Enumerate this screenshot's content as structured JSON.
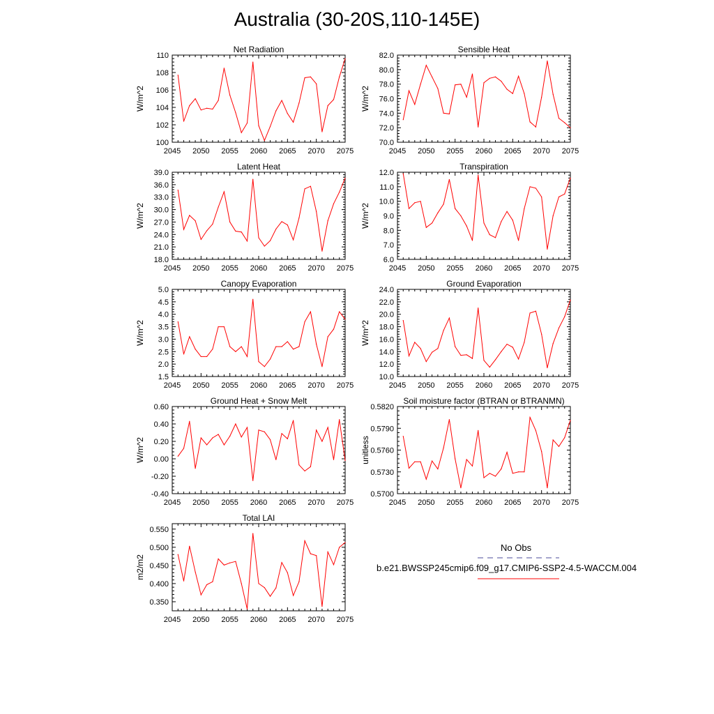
{
  "figure": {
    "title": "Australia (30-20S,110-145E)"
  },
  "legend": {
    "entries": [
      {
        "label": "No Obs",
        "color": "#4b4b9a",
        "style": "dashed"
      },
      {
        "label": "b.e21.BWSSP245cmip6.f09_g17.CMIP6-SSP2-4.5-WACCM.004",
        "color": "#ff0000",
        "style": "solid"
      }
    ]
  },
  "chart_data": [
    {
      "type": "line",
      "title": "Net Radiation",
      "xlabel": "",
      "ylabel": "W/m^2",
      "xlim": [
        2045,
        2075
      ],
      "ylim": [
        100,
        110
      ],
      "xticks": [
        2045,
        2050,
        2055,
        2060,
        2065,
        2070,
        2075
      ],
      "yticks": [
        100,
        102,
        104,
        106,
        108,
        110
      ],
      "ytick_labels": [
        "100",
        "102",
        "104",
        "106",
        "108",
        "110"
      ],
      "series": [
        {
          "color": "#ff0000",
          "x": [
            2046,
            2047,
            2048,
            2049,
            2050,
            2051,
            2052,
            2053,
            2054,
            2055,
            2056,
            2057,
            2058,
            2059,
            2060,
            2061,
            2062,
            2063,
            2064,
            2065,
            2066,
            2067,
            2068,
            2069,
            2070,
            2071,
            2072,
            2073,
            2074,
            2075
          ],
          "y": [
            107.7,
            102.4,
            104.2,
            105.0,
            103.7,
            103.9,
            103.8,
            104.8,
            108.5,
            105.4,
            103.4,
            101.1,
            102.2,
            109.2,
            101.9,
            100.2,
            101.8,
            103.6,
            104.8,
            103.3,
            102.3,
            104.5,
            107.4,
            107.5,
            106.7,
            101.2,
            104.2,
            104.9,
            107.5,
            109.6
          ]
        }
      ]
    },
    {
      "type": "line",
      "title": "Sensible Heat",
      "xlabel": "",
      "ylabel": "W/m^2",
      "xlim": [
        2045,
        2075
      ],
      "ylim": [
        70,
        82
      ],
      "xticks": [
        2045,
        2050,
        2055,
        2060,
        2065,
        2070,
        2075
      ],
      "yticks": [
        70,
        72,
        74,
        76,
        78,
        80,
        82
      ],
      "ytick_labels": [
        "70.0",
        "72.0",
        "74.0",
        "76.0",
        "78.0",
        "80.0",
        "82.0"
      ],
      "series": [
        {
          "color": "#ff0000",
          "x": [
            2046,
            2047,
            2048,
            2049,
            2050,
            2051,
            2052,
            2053,
            2054,
            2055,
            2056,
            2057,
            2058,
            2059,
            2060,
            2061,
            2062,
            2063,
            2064,
            2065,
            2066,
            2067,
            2068,
            2069,
            2070,
            2071,
            2072,
            2073,
            2074,
            2075
          ],
          "y": [
            73.1,
            77.1,
            75.2,
            78.0,
            80.6,
            79.0,
            77.4,
            74.0,
            73.9,
            77.9,
            78.0,
            76.2,
            79.4,
            72.1,
            78.2,
            78.8,
            79.0,
            78.4,
            77.3,
            76.7,
            79.1,
            76.7,
            72.8,
            72.1,
            76.2,
            81.2,
            76.6,
            73.3,
            72.7,
            72.0
          ]
        }
      ]
    },
    {
      "type": "line",
      "title": "Latent Heat",
      "xlabel": "",
      "ylabel": "W/m^2",
      "xlim": [
        2045,
        2075
      ],
      "ylim": [
        18,
        39
      ],
      "xticks": [
        2045,
        2050,
        2055,
        2060,
        2065,
        2070,
        2075
      ],
      "yticks": [
        18,
        21,
        24,
        27,
        30,
        33,
        36,
        39
      ],
      "ytick_labels": [
        "18.0",
        "21.0",
        "24.0",
        "27.0",
        "30.0",
        "33.0",
        "36.0",
        "39.0"
      ],
      "series": [
        {
          "color": "#ff0000",
          "x": [
            2046,
            2047,
            2048,
            2049,
            2050,
            2051,
            2052,
            2053,
            2054,
            2055,
            2056,
            2057,
            2058,
            2059,
            2060,
            2061,
            2062,
            2063,
            2064,
            2065,
            2066,
            2067,
            2068,
            2069,
            2070,
            2071,
            2072,
            2073,
            2074,
            2075
          ],
          "y": [
            34.7,
            25.2,
            28.6,
            27.3,
            22.8,
            24.9,
            26.5,
            30.6,
            34.3,
            27.0,
            24.8,
            24.6,
            22.4,
            37.3,
            23.2,
            21.2,
            22.5,
            25.3,
            27.1,
            26.3,
            22.7,
            28.0,
            35.0,
            35.6,
            29.5,
            20.0,
            27.3,
            31.4,
            34.2,
            37.6
          ]
        }
      ]
    },
    {
      "type": "line",
      "title": "Transpiration",
      "xlabel": "",
      "ylabel": "W/m^2",
      "xlim": [
        2045,
        2075
      ],
      "ylim": [
        6,
        12
      ],
      "xticks": [
        2045,
        2050,
        2055,
        2060,
        2065,
        2070,
        2075
      ],
      "yticks": [
        6,
        7,
        8,
        9,
        10,
        11,
        12
      ],
      "ytick_labels": [
        "6.0",
        "7.0",
        "8.0",
        "9.0",
        "10.0",
        "11.0",
        "12.0"
      ],
      "series": [
        {
          "color": "#ff0000",
          "x": [
            2046,
            2047,
            2048,
            2049,
            2050,
            2051,
            2052,
            2053,
            2054,
            2055,
            2056,
            2057,
            2058,
            2059,
            2060,
            2061,
            2062,
            2063,
            2064,
            2065,
            2066,
            2067,
            2068,
            2069,
            2070,
            2071,
            2072,
            2073,
            2074,
            2075
          ],
          "y": [
            11.9,
            9.5,
            9.9,
            10.0,
            8.2,
            8.5,
            9.2,
            9.8,
            11.5,
            9.5,
            9.0,
            8.3,
            7.3,
            11.8,
            8.5,
            7.7,
            7.5,
            8.6,
            9.3,
            8.7,
            7.3,
            9.5,
            11.0,
            10.9,
            10.3,
            6.7,
            9.0,
            10.3,
            10.5,
            11.6
          ]
        }
      ]
    },
    {
      "type": "line",
      "title": "Canopy Evaporation",
      "xlabel": "",
      "ylabel": "W/m^2",
      "xlim": [
        2045,
        2075
      ],
      "ylim": [
        1.5,
        5.0
      ],
      "xticks": [
        2045,
        2050,
        2055,
        2060,
        2065,
        2070,
        2075
      ],
      "yticks": [
        1.5,
        2.0,
        2.5,
        3.0,
        3.5,
        4.0,
        4.5,
        5.0
      ],
      "ytick_labels": [
        "1.5",
        "2.0",
        "2.5",
        "3.0",
        "3.5",
        "4.0",
        "4.5",
        "5.0"
      ],
      "series": [
        {
          "color": "#ff0000",
          "x": [
            2046,
            2047,
            2048,
            2049,
            2050,
            2051,
            2052,
            2053,
            2054,
            2055,
            2056,
            2057,
            2058,
            2059,
            2060,
            2061,
            2062,
            2063,
            2064,
            2065,
            2066,
            2067,
            2068,
            2069,
            2070,
            2071,
            2072,
            2073,
            2074,
            2075
          ],
          "y": [
            3.7,
            2.4,
            3.1,
            2.6,
            2.3,
            2.3,
            2.6,
            3.5,
            3.5,
            2.7,
            2.5,
            2.7,
            2.3,
            4.6,
            2.1,
            1.9,
            2.2,
            2.7,
            2.7,
            2.9,
            2.6,
            2.7,
            3.7,
            4.1,
            2.8,
            1.9,
            3.1,
            3.4,
            4.1,
            3.8
          ]
        }
      ]
    },
    {
      "type": "line",
      "title": "Ground Evaporation",
      "xlabel": "",
      "ylabel": "W/m^2",
      "xlim": [
        2045,
        2075
      ],
      "ylim": [
        10,
        24
      ],
      "xticks": [
        2045,
        2050,
        2055,
        2060,
        2065,
        2070,
        2075
      ],
      "yticks": [
        10,
        12,
        14,
        16,
        18,
        20,
        22,
        24
      ],
      "ytick_labels": [
        "10.0",
        "12.0",
        "14.0",
        "16.0",
        "18.0",
        "20.0",
        "22.0",
        "24.0"
      ],
      "series": [
        {
          "color": "#ff0000",
          "x": [
            2046,
            2047,
            2048,
            2049,
            2050,
            2051,
            2052,
            2053,
            2054,
            2055,
            2056,
            2057,
            2058,
            2059,
            2060,
            2061,
            2062,
            2063,
            2064,
            2065,
            2066,
            2067,
            2068,
            2069,
            2070,
            2071,
            2072,
            2073,
            2074,
            2075
          ],
          "y": [
            19.0,
            13.3,
            15.5,
            14.5,
            12.4,
            13.9,
            14.5,
            17.4,
            19.4,
            14.8,
            13.4,
            13.5,
            12.9,
            21.0,
            12.6,
            11.5,
            12.7,
            14.0,
            15.2,
            14.7,
            12.8,
            15.5,
            20.2,
            20.5,
            16.8,
            11.4,
            15.3,
            17.8,
            19.6,
            22.3
          ]
        }
      ]
    },
    {
      "type": "line",
      "title": "Ground Heat + Snow Melt",
      "xlabel": "",
      "ylabel": "W/m^2",
      "xlim": [
        2045,
        2075
      ],
      "ylim": [
        -0.4,
        0.6
      ],
      "xticks": [
        2045,
        2050,
        2055,
        2060,
        2065,
        2070,
        2075
      ],
      "yticks": [
        -0.4,
        -0.2,
        0.0,
        0.2,
        0.4,
        0.6
      ],
      "ytick_labels": [
        "-0.40",
        "-0.20",
        "0.00",
        "0.20",
        "0.40",
        "0.60"
      ],
      "series": [
        {
          "color": "#ff0000",
          "x": [
            2046,
            2047,
            2048,
            2049,
            2050,
            2051,
            2052,
            2053,
            2054,
            2055,
            2056,
            2057,
            2058,
            2059,
            2060,
            2061,
            2062,
            2063,
            2064,
            2065,
            2066,
            2067,
            2068,
            2069,
            2070,
            2071,
            2072,
            2073,
            2074,
            2075
          ],
          "y": [
            0.03,
            0.12,
            0.43,
            -0.11,
            0.24,
            0.16,
            0.24,
            0.28,
            0.16,
            0.26,
            0.4,
            0.25,
            0.36,
            -0.25,
            0.33,
            0.31,
            0.22,
            -0.01,
            0.29,
            0.23,
            0.44,
            -0.07,
            -0.14,
            -0.09,
            0.33,
            0.2,
            0.36,
            -0.01,
            0.45,
            -0.02
          ]
        }
      ]
    },
    {
      "type": "line",
      "title": "Soil moisture factor (BTRAN or BTRANMN)",
      "xlabel": "",
      "ylabel": "unitless",
      "xlim": [
        2045,
        2075
      ],
      "ylim": [
        0.57,
        0.582
      ],
      "xticks": [
        2045,
        2050,
        2055,
        2060,
        2065,
        2070,
        2075
      ],
      "yticks": [
        0.57,
        0.573,
        0.576,
        0.579,
        0.582
      ],
      "ytick_labels": [
        "0.5700",
        "0.5730",
        "0.5760",
        "0.5790",
        "0.5820"
      ],
      "series": [
        {
          "color": "#ff0000",
          "x": [
            2046,
            2047,
            2048,
            2049,
            2050,
            2051,
            2052,
            2053,
            2054,
            2055,
            2056,
            2057,
            2058,
            2059,
            2060,
            2061,
            2062,
            2063,
            2064,
            2065,
            2066,
            2067,
            2068,
            2069,
            2070,
            2071,
            2072,
            2073,
            2074,
            2075
          ],
          "y": [
            0.5779,
            0.5735,
            0.5744,
            0.5744,
            0.572,
            0.5745,
            0.5734,
            0.5763,
            0.5802,
            0.5748,
            0.5708,
            0.5747,
            0.5738,
            0.5787,
            0.5722,
            0.5728,
            0.5724,
            0.5734,
            0.5757,
            0.5728,
            0.573,
            0.573,
            0.5805,
            0.5787,
            0.5758,
            0.5708,
            0.5774,
            0.5765,
            0.5777,
            0.5801
          ]
        }
      ]
    },
    {
      "type": "line",
      "title": "Total LAI",
      "xlabel": "",
      "ylabel": "m2/m2",
      "xlim": [
        2045,
        2075
      ],
      "ylim": [
        0.325,
        0.565
      ],
      "xticks": [
        2045,
        2050,
        2055,
        2060,
        2065,
        2070,
        2075
      ],
      "yticks": [
        0.35,
        0.4,
        0.45,
        0.5,
        0.55
      ],
      "ytick_labels": [
        "0.350",
        "0.400",
        "0.450",
        "0.500",
        "0.550"
      ],
      "series": [
        {
          "color": "#ff0000",
          "x": [
            2046,
            2047,
            2048,
            2049,
            2050,
            2051,
            2052,
            2053,
            2054,
            2055,
            2056,
            2057,
            2058,
            2059,
            2060,
            2061,
            2062,
            2063,
            2064,
            2065,
            2066,
            2067,
            2068,
            2069,
            2070,
            2071,
            2072,
            2073,
            2074,
            2075
          ],
          "y": [
            0.48,
            0.407,
            0.503,
            0.432,
            0.369,
            0.397,
            0.405,
            0.468,
            0.451,
            0.457,
            0.461,
            0.4,
            0.33,
            0.538,
            0.4,
            0.389,
            0.365,
            0.388,
            0.458,
            0.43,
            0.367,
            0.405,
            0.518,
            0.482,
            0.477,
            0.337,
            0.487,
            0.452,
            0.5,
            0.513
          ]
        }
      ]
    }
  ]
}
